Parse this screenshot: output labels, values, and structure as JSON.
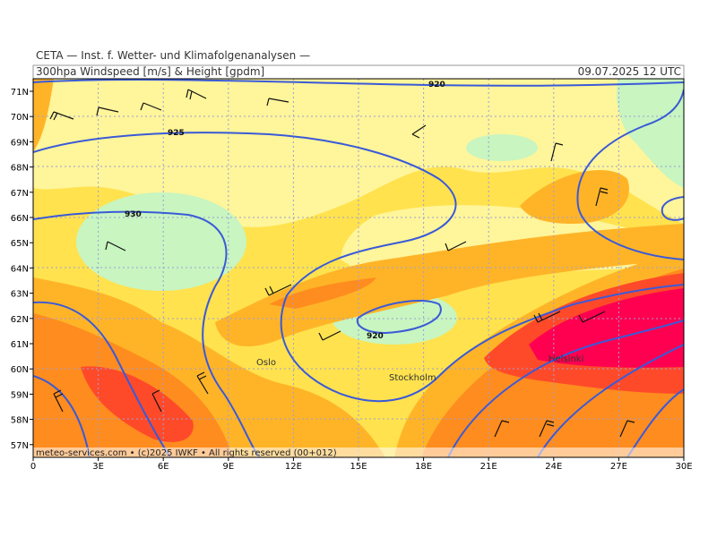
{
  "header": {
    "org": "CETA — Inst. f. Wetter- und Klimafolgenanalysen —",
    "title": "300hpa Windspeed [m/s] & Height [gpdm]",
    "date": "09.07.2025 12 UTC"
  },
  "footer": "meteo-services.com • (c)2025 IWKF • All rights reserved (00+012)",
  "contours": [
    "920",
    "925",
    "930",
    "920"
  ],
  "cities": [
    "Oslo",
    "Stockholm",
    "Helsinki"
  ],
  "lon_labels": [
    "0",
    "3E",
    "6E",
    "9E",
    "12E",
    "15E",
    "18E",
    "21E",
    "24E",
    "27E",
    "30E"
  ],
  "lat_labels": [
    "71N",
    "70N",
    "69N",
    "68N",
    "67N",
    "66N",
    "65N",
    "64N",
    "63N",
    "62N",
    "61N",
    "60N",
    "59N",
    "58N",
    "57N"
  ]
}
